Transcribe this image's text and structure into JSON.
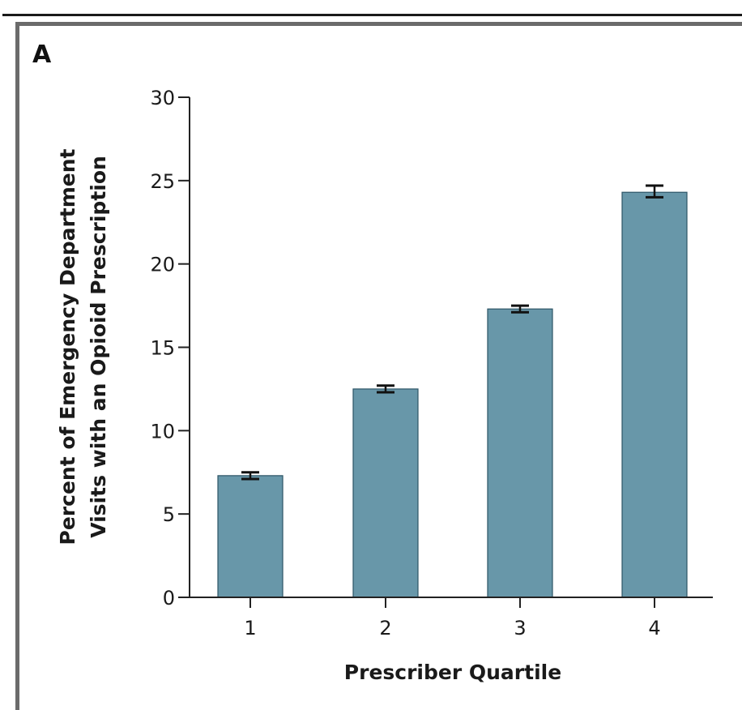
{
  "panel": {
    "label": "A"
  },
  "chart_data": {
    "type": "bar",
    "title": "",
    "xlabel": "Prescriber Quartile",
    "ylabel_lines": [
      "Percent of Emergency Department",
      "Visits with an Opioid Prescription"
    ],
    "categories": [
      "1",
      "2",
      "3",
      "4"
    ],
    "values": [
      7.3,
      12.5,
      17.3,
      24.3
    ],
    "error_bars": [
      {
        "low": 7.1,
        "high": 7.5
      },
      {
        "low": 12.3,
        "high": 12.7
      },
      {
        "low": 17.1,
        "high": 17.5
      },
      {
        "low": 24.0,
        "high": 24.7
      }
    ],
    "ylim": [
      0,
      30
    ],
    "yticks": [
      0,
      5,
      10,
      15,
      20,
      25,
      30
    ],
    "bar_color": "#6897a9",
    "bar_edge_color": "#2d5566",
    "grid": false,
    "legend": "none"
  }
}
